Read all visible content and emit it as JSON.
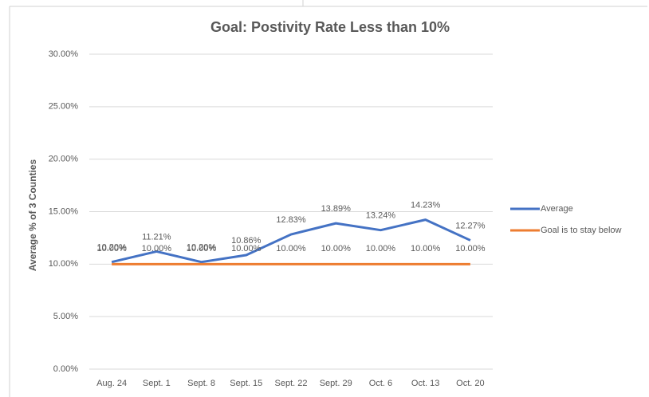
{
  "chart_data": {
    "type": "line",
    "title": "Goal: Postivity Rate Less than 10%",
    "ylabel": "Average % of 3 Counties",
    "categories": [
      "Aug. 24",
      "Sept. 1",
      "Sept. 8",
      "Sept. 15",
      "Sept. 22",
      "Sept. 29",
      "Oct. 6",
      "Oct. 13",
      "Oct. 20"
    ],
    "series": [
      {
        "name": "Average",
        "color": "#4472c4",
        "values": [
          10.2,
          11.21,
          10.2,
          10.86,
          12.83,
          13.89,
          13.24,
          14.23,
          12.27
        ],
        "value_labels": [
          "10.20%",
          "11.21%",
          "10.20%",
          "10.86%",
          "12.83%",
          "13.89%",
          "13.24%",
          "14.23%",
          "12.27%"
        ]
      },
      {
        "name": "Goal is to stay below",
        "color": "#ed7d31",
        "values": [
          10,
          10,
          10,
          10,
          10,
          10,
          10,
          10,
          10
        ],
        "value_labels": [
          "10.00%",
          "10.00%",
          "10.00%",
          "10.00%",
          "10.00%",
          "10.00%",
          "10.00%",
          "10.00%",
          "10.00%"
        ]
      }
    ],
    "ylim": [
      0,
      30
    ],
    "yticks": [
      {
        "value": 0,
        "label": "0.00%"
      },
      {
        "value": 5,
        "label": "5.00%"
      },
      {
        "value": 10,
        "label": "10.00%"
      },
      {
        "value": 15,
        "label": "15.00%"
      },
      {
        "value": 20,
        "label": "20.00%"
      },
      {
        "value": 25,
        "label": "25.00%"
      },
      {
        "value": 30,
        "label": "30.00%"
      }
    ],
    "grid": true,
    "legend": "right"
  }
}
